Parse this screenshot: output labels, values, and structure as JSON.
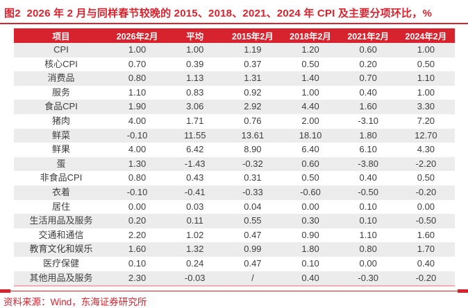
{
  "figure": {
    "title": "图2  2026 年 2 月与同样春节较晚的 2015、2018、2021、2024 年 CPI 及主要分项环比，%",
    "source": "资料来源：Wind，东海证券研究所"
  },
  "colors": {
    "accent_red": "#d7232e",
    "header_bg": "#d7232e",
    "header_text": "#ffffff",
    "row_stripe": "#ececec",
    "body_text": "#3d3d3d",
    "table_bottom_border": "#f0aeb4"
  },
  "chart_data": {
    "type": "table",
    "title": "2026年2月与同样春节较晚的2015、2018、2021、2024年CPI及主要分项环比，%",
    "columns": [
      "项目",
      "2026年2月",
      "平均",
      "2015年2月",
      "2018年2月",
      "2021年2月",
      "2024年2月"
    ],
    "rows": [
      [
        "CPI",
        "1.00",
        "1.00",
        "1.19",
        "1.20",
        "0.60",
        "1.00"
      ],
      [
        "核心CPI",
        "0.70",
        "0.39",
        "0.37",
        "0.50",
        "0.20",
        "0.50"
      ],
      [
        "消费品",
        "0.80",
        "1.13",
        "1.31",
        "1.40",
        "0.70",
        "1.10"
      ],
      [
        "服务",
        "1.10",
        "0.83",
        "0.92",
        "1.00",
        "0.40",
        "1.00"
      ],
      [
        "食品CPI",
        "1.90",
        "3.06",
        "2.92",
        "4.40",
        "1.60",
        "3.30"
      ],
      [
        "猪肉",
        "4.00",
        "1.71",
        "0.76",
        "2.00",
        "-3.10",
        "7.20"
      ],
      [
        "鲜菜",
        "-0.10",
        "11.55",
        "13.61",
        "18.10",
        "1.80",
        "12.70"
      ],
      [
        "鲜果",
        "4.00",
        "6.42",
        "8.90",
        "6.40",
        "6.10",
        "4.30"
      ],
      [
        "蛋",
        "1.30",
        "-1.43",
        "-0.32",
        "0.60",
        "-3.80",
        "-2.20"
      ],
      [
        "非食品CPI",
        "0.80",
        "0.43",
        "0.31",
        "0.50",
        "0.40",
        "0.50"
      ],
      [
        "衣着",
        "-0.10",
        "-0.41",
        "-0.33",
        "-0.60",
        "-0.50",
        "-0.20"
      ],
      [
        "居住",
        "0.00",
        "0.03",
        "0.04",
        "0.00",
        "0.10",
        "0.00"
      ],
      [
        "生活用品及服务",
        "0.20",
        "0.11",
        "0.55",
        "0.30",
        "0.10",
        "-0.50"
      ],
      [
        "交通和通信",
        "2.20",
        "1.02",
        "0.47",
        "0.90",
        "1.10",
        "1.60"
      ],
      [
        "教育文化和娱乐",
        "1.60",
        "1.32",
        "0.99",
        "1.80",
        "0.80",
        "1.70"
      ],
      [
        "医疗保健",
        "0.10",
        "0.24",
        "0.47",
        "0.10",
        "0.00",
        "0.40"
      ],
      [
        "其他用品及服务",
        "2.30",
        "-0.03",
        "/",
        "0.40",
        "-0.30",
        "-0.20"
      ]
    ]
  }
}
